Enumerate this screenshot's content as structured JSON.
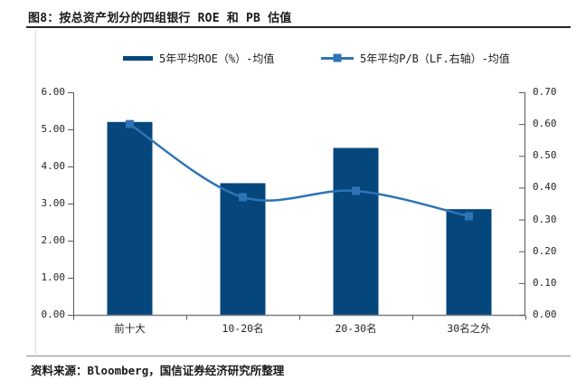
{
  "page": {
    "title": "图8：按总资产划分的四组银行 ROE 和 PB 估值",
    "source_note": "资料来源：Bloomberg，国信证券经济研究所整理"
  },
  "colors": {
    "bar": "#05477c",
    "line": "#2e74b5",
    "axis_line": "#595959",
    "baseline": "#7f7f7f",
    "tick_text": "#262626"
  },
  "chart_data": {
    "type": "combo-bar-line",
    "title": "按总资产划分的四组银行 ROE 和 PB 估值",
    "categories": [
      "前十大",
      "10-20名",
      "20-30名",
      "30名之外"
    ],
    "series": [
      {
        "name": "5年平均ROE（%）-均值",
        "type": "bar",
        "axis": "left",
        "color": "#05477c",
        "values": [
          5.2,
          3.55,
          4.5,
          2.85
        ]
      },
      {
        "name": "5年平均P/B（LF.右轴）-均值",
        "type": "line",
        "axis": "right",
        "color": "#2e74b5",
        "marker": "square",
        "values": [
          0.6,
          0.37,
          0.39,
          0.31
        ]
      }
    ],
    "left_axis": {
      "min": 0,
      "max": 6,
      "step": 1,
      "tick_labels": [
        "0.00",
        "1.00",
        "2.00",
        "3.00",
        "4.00",
        "5.00",
        "6.00"
      ]
    },
    "right_axis": {
      "min": 0,
      "max": 0.7,
      "step": 0.1,
      "tick_labels": [
        "0.00",
        "0.10",
        "0.20",
        "0.30",
        "0.40",
        "0.50",
        "0.60",
        "0.70"
      ]
    },
    "grid": false,
    "legend_position": "top"
  }
}
